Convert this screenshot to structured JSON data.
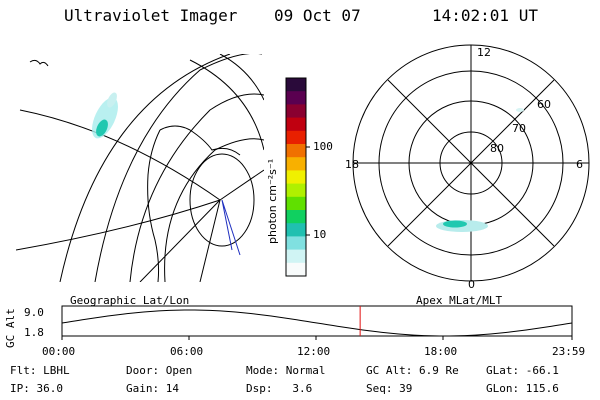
{
  "header": {
    "instrument": "Ultraviolet Imager",
    "date": "09 Oct 07",
    "time": "14:02:01 UT"
  },
  "colorbar": {
    "label": "photon cm⁻²s⁻¹",
    "ticks": [
      {
        "value": 100,
        "label": "100"
      },
      {
        "value": 10,
        "label": "10"
      }
    ],
    "colors": [
      "#2a0a3a",
      "#5a0050",
      "#8a0030",
      "#c00010",
      "#e82000",
      "#f07000",
      "#f8b000",
      "#f0f000",
      "#b0f000",
      "#60e000",
      "#10d060",
      "#20c0b0",
      "#80e0e0",
      "#d0f4f4",
      "#f8fbfb"
    ]
  },
  "left_panel": {
    "projection_label": "Geographic Lat/Lon"
  },
  "right_panel": {
    "projection_label": "Apex MLat/MLT",
    "mlt_labels": [
      "12",
      "18",
      "6",
      "0"
    ],
    "lat_labels": [
      "60",
      "70",
      "80"
    ]
  },
  "altitude_plot": {
    "ylabel": "GC Alt",
    "y_ticks": [
      "9.0",
      "1.8"
    ],
    "x_ticks": [
      "00:00",
      "06:00",
      "12:00",
      "18:00",
      "23:59"
    ],
    "current_time_hours": 14.03
  },
  "footer": {
    "filter_label": "Flt:",
    "filter_value": "LBHL",
    "ip_label": "IP:",
    "ip_value": "36.0",
    "door_label": "Door:",
    "door_value": "Open",
    "gain_label": "Gain:",
    "gain_value": "14",
    "mode_label": "Mode:",
    "mode_value": "Normal",
    "dsp_label": "Dsp:",
    "dsp_value": "3.6",
    "gcalt_label": "GC Alt:",
    "gcalt_value": "6.9 Re",
    "seq_label": "Seq:",
    "seq_value": "39",
    "glat_label": "GLat:",
    "glat_value": "-66.1",
    "glon_label": "GLon:",
    "glon_value": "115.6"
  }
}
